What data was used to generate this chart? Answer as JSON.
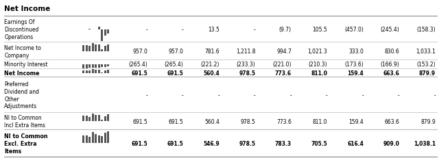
{
  "title": "Net Income",
  "rows": [
    {
      "label": "Earnings Of\nDiscontinued\nOperations",
      "bold": false,
      "has_sparkline": true,
      "values": [
        "-",
        "-",
        "13.5",
        "-",
        "(9.7)",
        "105.5",
        "(457.0)",
        "(245.4)",
        "(158.3)"
      ]
    },
    {
      "label": "Net Income to\nCompany",
      "bold": false,
      "has_sparkline": true,
      "values": [
        "957.0",
        "957.0",
        "781.6",
        "1,211.8",
        "994.7",
        "1,021.3",
        "333.0",
        "830.6",
        "1,033.1"
      ]
    },
    {
      "label": "Minority Interest",
      "bold": false,
      "has_sparkline": true,
      "values": [
        "(265.4)",
        "(265.4)",
        "(221.2)",
        "(233.3)",
        "(221.0)",
        "(210.3)",
        "(173.6)",
        "(166.9)",
        "(153.2)"
      ]
    },
    {
      "label": "Net Income",
      "bold": true,
      "has_sparkline": true,
      "values": [
        "691.5",
        "691.5",
        "560.4",
        "978.5",
        "773.6",
        "811.0",
        "159.4",
        "663.6",
        "879.9"
      ]
    },
    {
      "label": "Preferred\nDividend and\nOther\nAdjustments",
      "bold": false,
      "has_sparkline": false,
      "values": [
        "-",
        "-",
        "-",
        "-",
        "-",
        "-",
        "-",
        "-",
        "-"
      ]
    },
    {
      "label": "NI to Common\nIncl Extra Items",
      "bold": false,
      "has_sparkline": true,
      "values": [
        "691.5",
        "691.5",
        "560.4",
        "978.5",
        "773.6",
        "811.0",
        "159.4",
        "663.6",
        "879.9"
      ]
    },
    {
      "label": "NI to Common\nExcl. Extra\nItems",
      "bold": true,
      "has_sparkline": true,
      "values": [
        "691.5",
        "691.5",
        "546.9",
        "978.5",
        "783.3",
        "705.5",
        "616.4",
        "909.0",
        "1,038.1"
      ]
    }
  ],
  "title_color": "#000000",
  "row_divider_color": "#bbbbbb",
  "text_color": "#000000",
  "sparkline_color": "#555555"
}
